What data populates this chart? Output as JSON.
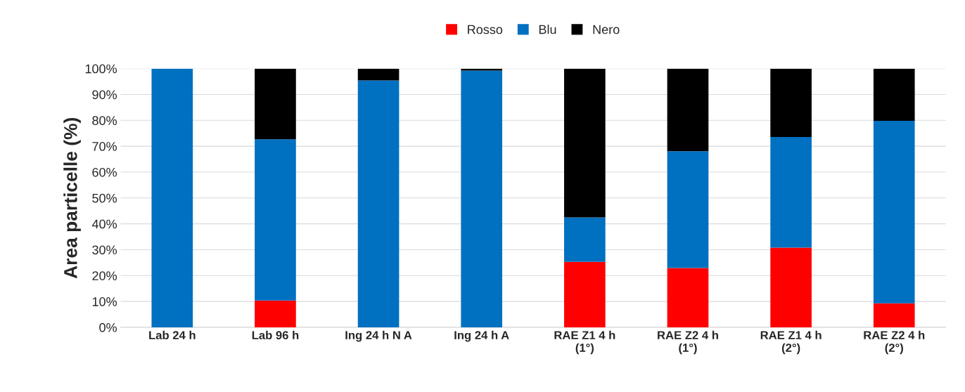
{
  "chart_data": {
    "type": "bar",
    "stacked": true,
    "ylabel": "Area particelle (%)",
    "categories": [
      "Lab 24 h",
      "Lab 96 h",
      "Ing 24 h N A",
      "Ing 24 h A",
      "RAE Z1 4 h\n(1°)",
      "RAE Z2 4 h\n(1°)",
      "RAE Z1 4 h\n(2°)",
      "RAE Z2 4 h\n(2°)"
    ],
    "series": [
      {
        "name": "Rosso",
        "color": "#ff0000",
        "values": [
          0,
          10.4,
          0,
          0,
          25.3,
          22.9,
          30.8,
          9.3
        ]
      },
      {
        "name": "Blu",
        "color": "#0070c0",
        "values": [
          100,
          62.3,
          95.4,
          99.2,
          17.2,
          45.2,
          42.8,
          70.5
        ]
      },
      {
        "name": "Nero",
        "color": "#000000",
        "values": [
          0,
          27.3,
          4.6,
          0.8,
          57.5,
          31.9,
          26.4,
          20.2
        ]
      }
    ],
    "ylim": [
      0,
      100
    ],
    "yticks": [
      {
        "value": 0,
        "label": "0%"
      },
      {
        "value": 10,
        "label": "10%"
      },
      {
        "value": 20,
        "label": "20%"
      },
      {
        "value": 30,
        "label": "30%"
      },
      {
        "value": 40,
        "label": "40%"
      },
      {
        "value": 50,
        "label": "50%"
      },
      {
        "value": 60,
        "label": "60%"
      },
      {
        "value": 70,
        "label": "70%"
      },
      {
        "value": 80,
        "label": "80%"
      },
      {
        "value": 90,
        "label": "90%"
      },
      {
        "value": 100,
        "label": "100%"
      }
    ],
    "grid": "y",
    "legend": "top"
  }
}
